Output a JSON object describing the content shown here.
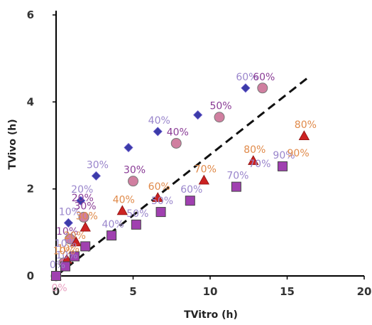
{
  "chart_data": {
    "type": "scatter",
    "title": "",
    "xlabel": "TVitro (h)",
    "ylabel": "TVivo (h)",
    "xlim": [
      0,
      20
    ],
    "ylim": [
      0,
      6
    ],
    "x_ticks": [
      "0",
      "5",
      "10",
      "15",
      "20"
    ],
    "y_ticks": [
      "0",
      "2",
      "4",
      "6"
    ],
    "grid": false,
    "legend": "none",
    "reference_line": {
      "style": "dashed",
      "color": "#111111",
      "points": [
        [
          0,
          0
        ],
        [
          16.5,
          4.6
        ]
      ]
    },
    "series": [
      {
        "marker": "diamond",
        "color": "#3b3ba8",
        "label_color": "#9a86cc",
        "points": [
          {
            "x": 0,
            "y": 0,
            "label": ""
          },
          {
            "x": 0.8,
            "y": 1.22,
            "label": "10%"
          },
          {
            "x": 1.6,
            "y": 1.73,
            "label": "20%"
          },
          {
            "x": 2.6,
            "y": 2.3,
            "label": "30%"
          },
          {
            "x": 4.7,
            "y": 2.95,
            "label": ""
          },
          {
            "x": 6.6,
            "y": 3.32,
            "label": "40%"
          },
          {
            "x": 9.2,
            "y": 3.7,
            "label": ""
          },
          {
            "x": 12.3,
            "y": 4.32,
            "label": "60%"
          }
        ]
      },
      {
        "marker": "circle",
        "color": "#d07fa0",
        "label_color": "#8a3c96",
        "points": [
          {
            "x": 0,
            "y": 0,
            "label": ""
          },
          {
            "x": 0.5,
            "y": 0.3,
            "label": ""
          },
          {
            "x": 0.9,
            "y": 0.85,
            "label": ""
          },
          {
            "x": 1.8,
            "y": 1.35,
            "label": "30%"
          },
          {
            "x": 5.0,
            "y": 2.18,
            "label": "30%"
          },
          {
            "x": 7.8,
            "y": 3.05,
            "label": "40%"
          },
          {
            "x": 10.6,
            "y": 3.65,
            "label": "50%"
          },
          {
            "x": 13.4,
            "y": 4.32,
            "label": "60%"
          }
        ]
      },
      {
        "marker": "triangle",
        "color": "#cc2222",
        "label_color": "#e08a4a",
        "points": [
          {
            "x": 0,
            "y": 0,
            "label": ""
          },
          {
            "x": 0.7,
            "y": 0.38,
            "label": "10%"
          },
          {
            "x": 1.3,
            "y": 0.78,
            "label": ""
          },
          {
            "x": 1.9,
            "y": 1.12,
            "label": "30%"
          },
          {
            "x": 4.3,
            "y": 1.5,
            "label": "40%"
          },
          {
            "x": 6.6,
            "y": 1.8,
            "label": "60%"
          },
          {
            "x": 9.6,
            "y": 2.2,
            "label": "70%"
          },
          {
            "x": 12.8,
            "y": 2.65,
            "label": "80%"
          },
          {
            "x": 16.1,
            "y": 3.22,
            "label": "80%"
          }
        ]
      },
      {
        "marker": "square",
        "color": "#a040b0",
        "label_color": "#9a86cc",
        "points": [
          {
            "x": 0,
            "y": 0,
            "label": "0%"
          },
          {
            "x": 0.6,
            "y": 0.22,
            "label": "10%"
          },
          {
            "x": 1.2,
            "y": 0.45,
            "label": ""
          },
          {
            "x": 1.9,
            "y": 0.68,
            "label": ""
          },
          {
            "x": 3.6,
            "y": 0.93,
            "label": "40%"
          },
          {
            "x": 5.2,
            "y": 1.18,
            "label": "50%"
          },
          {
            "x": 6.8,
            "y": 1.47,
            "label": "50%"
          },
          {
            "x": 8.7,
            "y": 1.73,
            "label": "60%"
          },
          {
            "x": 11.7,
            "y": 2.05,
            "label": "70%"
          },
          {
            "x": 14.7,
            "y": 2.52,
            "label": "90%"
          }
        ]
      }
    ],
    "annotations": [
      {
        "text": "20%",
        "x": 1.0,
        "y": 1.72,
        "color": "#8a3c96"
      },
      {
        "text": "10%",
        "x": 0.0,
        "y": 0.95,
        "color": "#8a3c96"
      },
      {
        "text": "10%",
        "x": -0.1,
        "y": 0.67,
        "color": "#9a86cc"
      },
      {
        "text": "20%",
        "x": 0.5,
        "y": 0.85,
        "color": "#e08a4a"
      },
      {
        "text": "10%",
        "x": -0.2,
        "y": 0.5,
        "color": "#e08a4a"
      },
      {
        "text": "70%",
        "x": 12.5,
        "y": 2.5,
        "color": "#9a86cc"
      },
      {
        "text": "90%",
        "x": 15.0,
        "y": 2.75,
        "color": "#e08a4a"
      },
      {
        "text": "0%",
        "x": -0.3,
        "y": -0.35,
        "color": "#e8a0c0"
      }
    ]
  }
}
